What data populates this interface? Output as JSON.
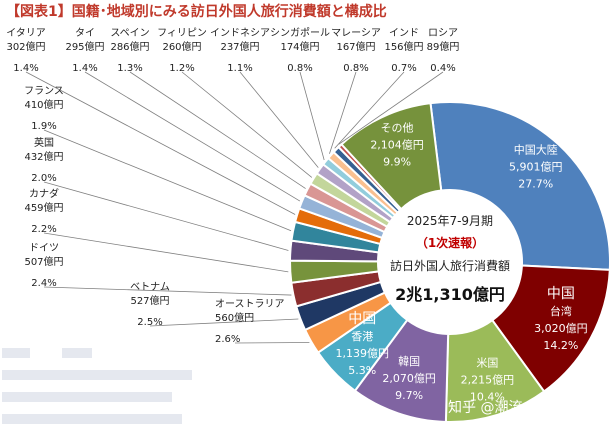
{
  "chart_data": {
    "type": "pie",
    "title": "【図表1】国籍･地域別にみる訪日外国人旅行消費額と構成比",
    "center": {
      "period": "2025年7-9月期",
      "note": "（1次速報）",
      "label": "訪日外国人旅行消費額",
      "total": "2兆1,310億円"
    },
    "slices": [
      {
        "name": "中国大陸",
        "amount": "5,901億円",
        "share": "27.7%",
        "value": 27.7,
        "color": "#4f81bd"
      },
      {
        "name": "中国 台湾",
        "amount": "3,020億円",
        "share": "14.2%",
        "value": 14.2,
        "color": "#7f0000"
      },
      {
        "name": "米国",
        "amount": "2,215億円",
        "share": "10.4%",
        "value": 10.4,
        "color": "#9bbb59"
      },
      {
        "name": "韓国",
        "amount": "2,070億円",
        "share": "9.7%",
        "value": 9.7,
        "color": "#8064a2"
      },
      {
        "name": "中国 香港",
        "amount": "1,139億円",
        "share": "5.3%",
        "value": 5.3,
        "color": "#4bacc6"
      },
      {
        "name": "オーストラリア",
        "amount": "560億円",
        "share": "2.6%",
        "value": 2.6,
        "color": "#f79646"
      },
      {
        "name": "ベトナム",
        "amount": "527億円",
        "share": "2.5%",
        "value": 2.5,
        "color": "#1f3864"
      },
      {
        "name": "ドイツ",
        "amount": "507億円",
        "share": "2.4%",
        "value": 2.4,
        "color": "#8b2e2e"
      },
      {
        "name": "カナダ",
        "amount": "459億円",
        "share": "2.2%",
        "value": 2.2,
        "color": "#77933c"
      },
      {
        "name": "英国",
        "amount": "432億円",
        "share": "2.0%",
        "value": 2.0,
        "color": "#5f497a"
      },
      {
        "name": "フランス",
        "amount": "410億円",
        "share": "1.9%",
        "value": 1.9,
        "color": "#31859c"
      },
      {
        "name": "イタリア",
        "amount": "302億円",
        "share": "1.4%",
        "value": 1.4,
        "color": "#e46c0a"
      },
      {
        "name": "タイ",
        "amount": "295億円",
        "share": "1.4%",
        "value": 1.4,
        "color": "#95b3d7"
      },
      {
        "name": "スペイン",
        "amount": "286億円",
        "share": "1.3%",
        "value": 1.3,
        "color": "#d99694"
      },
      {
        "name": "フィリピン",
        "amount": "260億円",
        "share": "1.2%",
        "value": 1.2,
        "color": "#c3d69b"
      },
      {
        "name": "インドネシア",
        "amount": "237億円",
        "share": "1.1%",
        "value": 1.1,
        "color": "#b2a2c7"
      },
      {
        "name": "シンガポール",
        "amount": "174億円",
        "share": "0.8%",
        "value": 0.8,
        "color": "#92cddc"
      },
      {
        "name": "マレーシア",
        "amount": "167億円",
        "share": "0.8%",
        "value": 0.8,
        "color": "#fac090"
      },
      {
        "name": "インド",
        "amount": "156億円",
        "share": "0.7%",
        "value": 0.7,
        "color": "#366092"
      },
      {
        "name": "ロシア",
        "amount": "89億円",
        "share": "0.4%",
        "value": 0.4,
        "color": "#c0504d"
      },
      {
        "name": "その他",
        "amount": "2,104億円",
        "share": "9.9%",
        "value": 9.9,
        "color": "#76923c"
      }
    ]
  },
  "watermark": "知乎 @潮流小队长",
  "label_taiwan_name_1": "中国",
  "label_taiwan_name_2": "台湾",
  "label_hk_name_1": "中国",
  "label_hk_name_2": "香港",
  "label_mainland": "中国大陸"
}
